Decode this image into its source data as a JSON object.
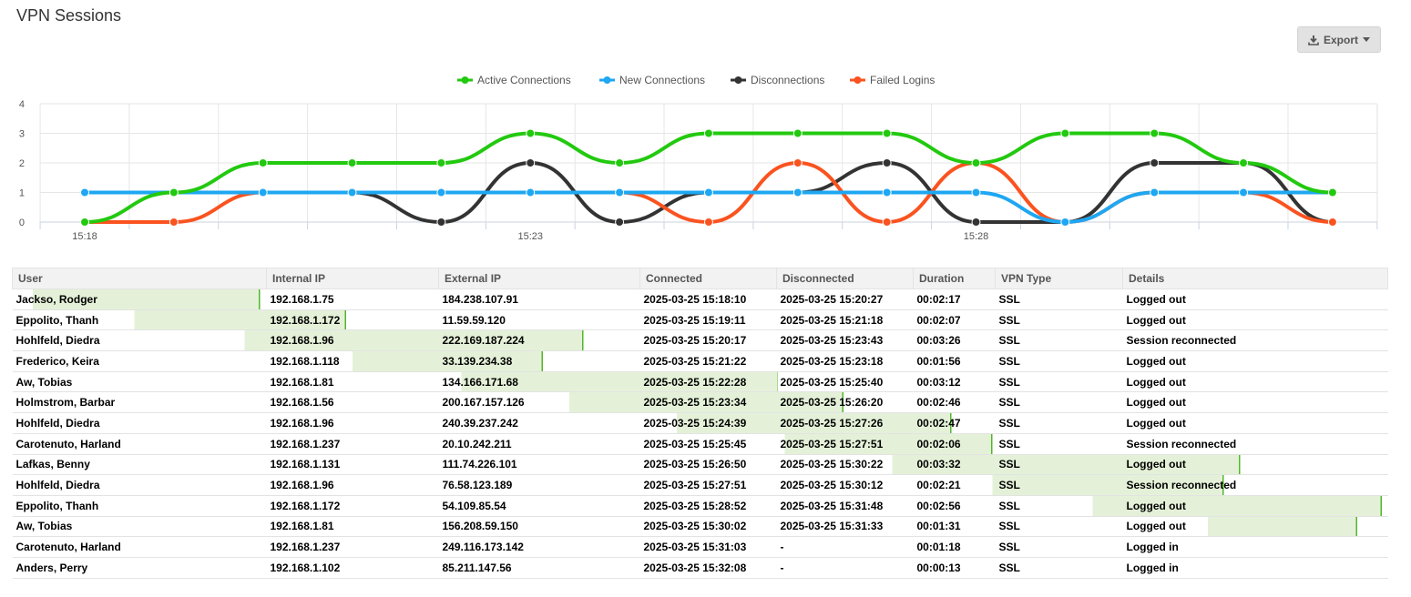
{
  "page": {
    "title": "VPN Sessions"
  },
  "toolbar": {
    "export_label": "Export",
    "export_icon": "download-icon",
    "caret_icon": "caret-down-icon"
  },
  "colors": {
    "active": "#22c90f",
    "new": "#1ea7f2",
    "disconnections": "#333333",
    "failed": "#fa5320",
    "bar": "#e4f1d8",
    "bar_edge": "#52b72a"
  },
  "legend": [
    {
      "key": "active",
      "label": "Active Connections"
    },
    {
      "key": "new",
      "label": "New Connections"
    },
    {
      "key": "disconnections",
      "label": "Disconnections"
    },
    {
      "key": "failed",
      "label": "Failed Logins"
    }
  ],
  "chart_data": {
    "type": "line",
    "x_ticks": [
      "15:18",
      "15:23",
      "15:28"
    ],
    "y_ticks": [
      0,
      1,
      2,
      3,
      4
    ],
    "ylim": [
      0,
      4
    ],
    "x_interval_minutes": 1,
    "grid": true,
    "legend_position": "top-center",
    "x": [
      "15:18",
      "15:19",
      "15:20",
      "15:21",
      "15:22",
      "15:23",
      "15:24",
      "15:25",
      "15:26",
      "15:27",
      "15:28",
      "15:29",
      "15:30",
      "15:31",
      "15:32"
    ],
    "series": [
      {
        "name": "Active Connections",
        "color_key": "active",
        "values": [
          0,
          1,
          2,
          2,
          2,
          3,
          2,
          3,
          3,
          3,
          2,
          3,
          3,
          2,
          1
        ]
      },
      {
        "name": "New Connections",
        "color_key": "new",
        "values": [
          1,
          1,
          1,
          1,
          1,
          1,
          1,
          1,
          1,
          1,
          1,
          0,
          1,
          1,
          1
        ]
      },
      {
        "name": "Disconnections",
        "color_key": "disconnections",
        "values": [
          null,
          null,
          1,
          1,
          0,
          2,
          0,
          1,
          1,
          2,
          0,
          0,
          2,
          2,
          0
        ]
      },
      {
        "name": "Failed Logins",
        "color_key": "failed",
        "values": [
          0,
          0,
          1,
          1,
          1,
          1,
          1,
          0,
          2,
          0,
          2,
          0,
          1,
          1,
          0
        ]
      }
    ]
  },
  "table": {
    "columns": [
      "User",
      "Internal IP",
      "External IP",
      "Connected",
      "Disconnected",
      "Duration",
      "VPN Type",
      "Details"
    ],
    "rows": [
      {
        "cells": [
          "Jackso, Rodger",
          "192.168.1.75",
          "184.238.107.91",
          "2025-03-25 15:18:10",
          "2025-03-25 15:20:27",
          "00:02:17",
          "SSL",
          "Logged out"
        ],
        "bar_start": 0.0146,
        "bar_end": 0.1798
      },
      {
        "cells": [
          "Eppolito, Thanh",
          "192.168.1.172",
          "11.59.59.120",
          "2025-03-25 15:19:11",
          "2025-03-25 15:21:18",
          "00:02:07",
          "SSL",
          "Logged out"
        ],
        "bar_start": 0.0885,
        "bar_end": 0.2424
      },
      {
        "cells": [
          "Hohlfeld, Diedra",
          "192.168.1.96",
          "222.169.187.224",
          "2025-03-25 15:20:17",
          "2025-03-25 15:23:43",
          "00:03:26",
          "SSL",
          "Session reconnected"
        ],
        "bar_start": 0.1685,
        "bar_end": 0.4148
      },
      {
        "cells": [
          "Frederico, Keira",
          "192.168.1.118",
          "33.139.234.38",
          "2025-03-25 15:21:22",
          "2025-03-25 15:23:18",
          "00:01:56",
          "SSL",
          "Logged out"
        ],
        "bar_start": 0.2471,
        "bar_end": 0.3854
      },
      {
        "cells": [
          "Aw, Tobias",
          "192.168.1.81",
          "134.166.171.68",
          "2025-03-25 15:22:28",
          "2025-03-25 15:25:40",
          "00:03:12",
          "SSL",
          "Logged out"
        ],
        "bar_start": 0.3261,
        "bar_end": 0.5558
      },
      {
        "cells": [
          "Holmstrom, Barbar",
          "192.168.1.56",
          "200.167.157.126",
          "2025-03-25 15:23:34",
          "2025-03-25 15:26:20",
          "00:02:46",
          "SSL",
          "Logged out"
        ],
        "bar_start": 0.4047,
        "bar_end": 0.6039
      },
      {
        "cells": [
          "Hohlfeld, Diedra",
          "192.168.1.96",
          "240.39.237.242",
          "2025-03-25 15:24:39",
          "2025-03-25 15:27:26",
          "00:02:47",
          "SSL",
          "Logged out"
        ],
        "bar_start": 0.4828,
        "bar_end": 0.6826
      },
      {
        "cells": [
          "Carotenuto, Harland",
          "192.168.1.237",
          "20.10.242.211",
          "2025-03-25 15:25:45",
          "2025-03-25 15:27:51",
          "00:02:06",
          "SSL",
          "Session reconnected"
        ],
        "bar_start": 0.5612,
        "bar_end": 0.7124
      },
      {
        "cells": [
          "Lafkas, Benny",
          "192.168.1.131",
          "111.74.226.101",
          "2025-03-25 15:26:50",
          "2025-03-25 15:30:22",
          "00:03:32",
          "SSL",
          "Logged out"
        ],
        "bar_start": 0.6393,
        "bar_end": 0.8925
      },
      {
        "cells": [
          "Hohlfeld, Diedra",
          "192.168.1.96",
          "76.58.123.189",
          "2025-03-25 15:27:51",
          "2025-03-25 15:30:12",
          "00:02:21",
          "SSL",
          "Session reconnected"
        ],
        "bar_start": 0.7124,
        "bar_end": 0.8806
      },
      {
        "cells": [
          "Eppolito, Thanh",
          "192.168.1.172",
          "54.109.85.54",
          "2025-03-25 15:28:52",
          "2025-03-25 15:31:48",
          "00:02:56",
          "SSL",
          "Logged out"
        ],
        "bar_start": 0.7852,
        "bar_end": 0.9953
      },
      {
        "cells": [
          "Aw, Tobias",
          "192.168.1.81",
          "156.208.59.150",
          "2025-03-25 15:30:02",
          "2025-03-25 15:31:33",
          "00:01:31",
          "SSL",
          "Logged out"
        ],
        "bar_start": 0.8688,
        "bar_end": 0.9775
      },
      {
        "cells": [
          "Carotenuto, Harland",
          "192.168.1.237",
          "249.116.173.142",
          "2025-03-25 15:31:03",
          "-",
          "00:01:18",
          "SSL",
          "Logged in"
        ],
        "bar_start": null,
        "bar_end": null
      },
      {
        "cells": [
          "Anders, Perry",
          "192.168.1.102",
          "85.211.147.56",
          "2025-03-25 15:32:08",
          "-",
          "00:00:13",
          "SSL",
          "Logged in"
        ],
        "bar_start": null,
        "bar_end": null
      }
    ]
  }
}
